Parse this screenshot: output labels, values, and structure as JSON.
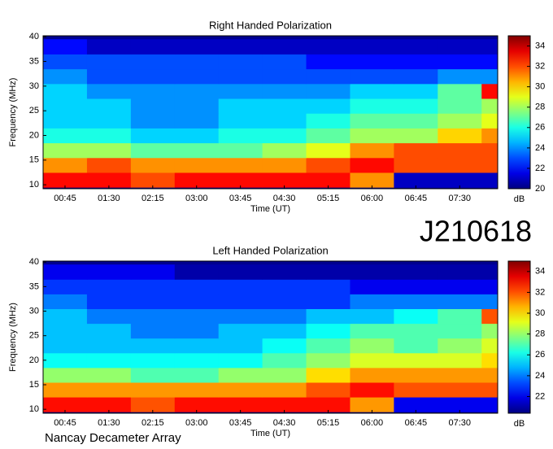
{
  "chart_data": [
    {
      "type": "heatmap",
      "title": "Right Handed Polarization",
      "xlabel": "Time (UT)",
      "ylabel": "Frequency (MHz)",
      "zlabel": "dB",
      "x": [
        45,
        90,
        135,
        180,
        225,
        270,
        315,
        360,
        405,
        450,
        495
      ],
      "y": [
        11,
        14,
        17,
        20,
        23,
        26,
        29,
        32,
        35,
        38
      ],
      "z": [
        [
          33,
          33,
          32,
          33,
          33,
          33,
          33,
          31,
          21,
          21,
          21
        ],
        [
          31,
          32,
          31,
          31,
          31,
          31,
          32,
          33,
          32,
          32,
          32
        ],
        [
          28,
          28,
          27,
          27,
          27,
          28,
          29,
          31,
          32,
          32,
          32
        ],
        [
          26,
          26,
          25,
          25,
          26,
          26,
          27,
          28,
          28,
          30,
          31
        ],
        [
          25,
          25,
          24,
          24,
          25,
          25,
          26,
          27,
          27,
          28,
          29
        ],
        [
          25,
          25,
          24,
          24,
          25,
          25,
          25,
          26,
          26,
          27,
          28
        ],
        [
          25,
          24,
          24,
          24,
          24,
          24,
          24,
          25,
          25,
          27,
          33
        ],
        [
          24,
          23,
          23,
          23,
          23,
          23,
          23,
          23,
          23,
          24,
          24
        ],
        [
          23,
          23,
          23,
          23,
          23,
          23,
          22,
          22,
          22,
          22,
          22
        ],
        [
          22,
          21,
          21,
          21,
          21,
          21,
          21,
          21,
          21,
          21,
          21
        ]
      ],
      "xlim": [
        22.5,
        489
      ],
      "ylim": [
        9.2,
        40.2
      ],
      "zlim": [
        20,
        35
      ],
      "xticks": [
        {
          "value": 45,
          "label": "00:45"
        },
        {
          "value": 90,
          "label": "01:30"
        },
        {
          "value": 135,
          "label": "02:15"
        },
        {
          "value": 180,
          "label": "03:00"
        },
        {
          "value": 225,
          "label": "03:45"
        },
        {
          "value": 270,
          "label": "04:30"
        },
        {
          "value": 315,
          "label": "05:15"
        },
        {
          "value": 360,
          "label": "06:00"
        },
        {
          "value": 405,
          "label": "06:45"
        },
        {
          "value": 450,
          "label": "07:30"
        }
      ],
      "yticks": [
        10,
        15,
        20,
        25,
        30,
        35,
        40
      ],
      "zticks": [
        20,
        22,
        24,
        26,
        28,
        30,
        32,
        34
      ]
    },
    {
      "type": "heatmap",
      "title": "Left Handed Polarization",
      "xlabel": "Time (UT)",
      "ylabel": "Frequency (MHz)",
      "zlabel": "dB",
      "x": [
        45,
        90,
        135,
        180,
        225,
        270,
        315,
        360,
        405,
        450,
        495
      ],
      "y": [
        11,
        14,
        17,
        20,
        23,
        26,
        29,
        32,
        35,
        38
      ],
      "z": [
        [
          33,
          33,
          32,
          33,
          33,
          33,
          33,
          31,
          22,
          22,
          22
        ],
        [
          31,
          31,
          31,
          31,
          31,
          31,
          32,
          33,
          32,
          32,
          32
        ],
        [
          28,
          28,
          27,
          27,
          28,
          28,
          30,
          31,
          31,
          31,
          31
        ],
        [
          26,
          26,
          26,
          26,
          26,
          27,
          28,
          29,
          29,
          29,
          30
        ],
        [
          25,
          25,
          25,
          25,
          25,
          26,
          27,
          28,
          27,
          28,
          29
        ],
        [
          25,
          25,
          24,
          24,
          25,
          25,
          26,
          27,
          27,
          27,
          28
        ],
        [
          25,
          24,
          24,
          24,
          24,
          24,
          25,
          25,
          26,
          27,
          32
        ],
        [
          24,
          23,
          23,
          23,
          23,
          23,
          23,
          24,
          24,
          24,
          24
        ],
        [
          23,
          23,
          23,
          23,
          23,
          23,
          23,
          22,
          22,
          22,
          22
        ],
        [
          22,
          22,
          22,
          21,
          21,
          21,
          21,
          21,
          21,
          21,
          21
        ]
      ],
      "xlim": [
        22.5,
        489
      ],
      "ylim": [
        9.2,
        40.2
      ],
      "zlim": [
        20.4,
        35
      ],
      "xticks": [
        {
          "value": 45,
          "label": "00:45"
        },
        {
          "value": 90,
          "label": "01:30"
        },
        {
          "value": 135,
          "label": "02:15"
        },
        {
          "value": 180,
          "label": "03:00"
        },
        {
          "value": 225,
          "label": "03:45"
        },
        {
          "value": 270,
          "label": "04:30"
        },
        {
          "value": 315,
          "label": "05:15"
        },
        {
          "value": 360,
          "label": "06:00"
        },
        {
          "value": 405,
          "label": "06:45"
        },
        {
          "value": 450,
          "label": "07:30"
        }
      ],
      "yticks": [
        10,
        15,
        20,
        25,
        30,
        35,
        40
      ],
      "zticks": [
        22,
        24,
        26,
        28,
        30,
        32,
        34
      ]
    }
  ],
  "label": "J210618",
  "caption": "Nancay Decameter Array"
}
